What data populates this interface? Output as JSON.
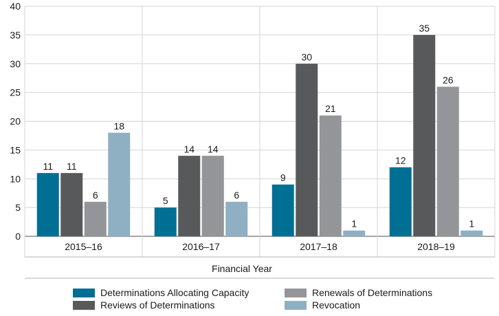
{
  "chart_data": {
    "type": "bar",
    "title": "",
    "xlabel": "Financial Year",
    "ylabel": "",
    "ylim": [
      0,
      40
    ],
    "yticks": [
      0,
      5,
      10,
      15,
      20,
      25,
      30,
      35,
      40
    ],
    "grid": true,
    "categories": [
      "2015–16",
      "2016–17",
      "2017–18",
      "2018–19"
    ],
    "series": [
      {
        "name": "Determinations Allocating Capacity",
        "color": "#006f94",
        "values": [
          11,
          5,
          9,
          12
        ]
      },
      {
        "name": "Reviews of Determinations",
        "color": "#58595b",
        "values": [
          11,
          14,
          30,
          35
        ]
      },
      {
        "name": "Renewals of Determinations",
        "color": "#939598",
        "values": [
          6,
          14,
          21,
          26
        ]
      },
      {
        "name": "Revocation",
        "color": "#8fafc3",
        "values": [
          18,
          6,
          1,
          1
        ]
      }
    ],
    "legend_position": "bottom"
  }
}
